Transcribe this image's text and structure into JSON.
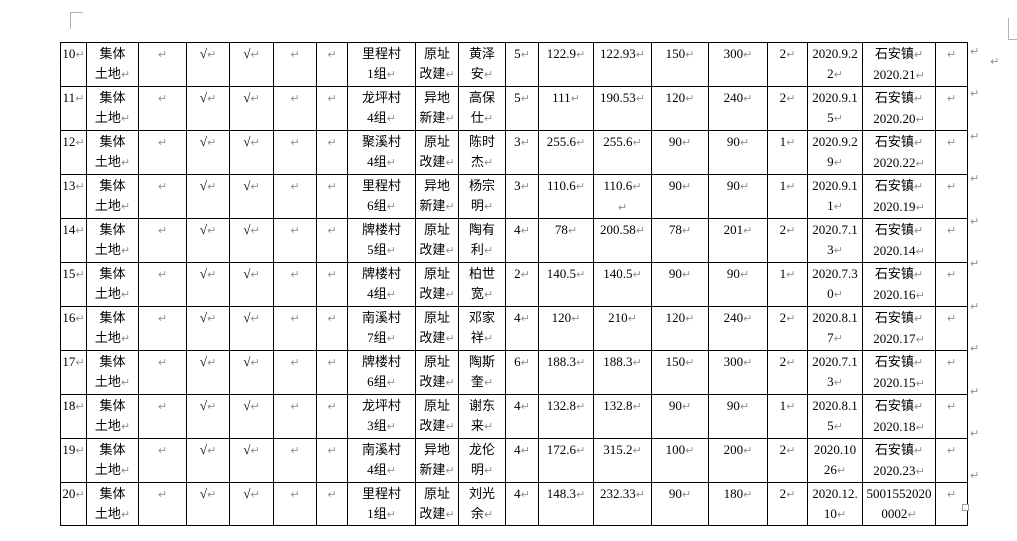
{
  "page": {
    "formatting_mark": "↵",
    "mark_color": "#8a8f9e",
    "border_color": "#000000",
    "background": "#ffffff"
  },
  "table": {
    "columns": [
      {
        "key": "no",
        "name": "row-number"
      },
      {
        "key": "land",
        "name": "land-type"
      },
      {
        "key": "b1",
        "name": "blank-1"
      },
      {
        "key": "ck1",
        "name": "check-1"
      },
      {
        "key": "ck2",
        "name": "check-2"
      },
      {
        "key": "b2",
        "name": "blank-2"
      },
      {
        "key": "b3",
        "name": "blank-3"
      },
      {
        "key": "vg",
        "name": "village-group"
      },
      {
        "key": "bm",
        "name": "build-method"
      },
      {
        "key": "nm",
        "name": "applicant-name"
      },
      {
        "key": "n1",
        "name": "num-1"
      },
      {
        "key": "a1",
        "name": "area-1"
      },
      {
        "key": "a2",
        "name": "area-2"
      },
      {
        "key": "n2",
        "name": "num-2"
      },
      {
        "key": "n3",
        "name": "num-3"
      },
      {
        "key": "n4",
        "name": "num-4"
      },
      {
        "key": "dt",
        "name": "approval-date"
      },
      {
        "key": "ap",
        "name": "approval-no"
      },
      {
        "key": "tail",
        "name": "blank-tail"
      }
    ],
    "rows": [
      {
        "no": "10↵",
        "land": "集体\n土地↵",
        "b1": "↵",
        "ck1": "√↵",
        "ck2": "√↵",
        "b2": "↵",
        "b3": "↵",
        "vg": "里程村\n1组↵",
        "bm": "原址\n改建↵",
        "nm": "黄泽\n安↵",
        "n1": "5↵",
        "a1": "122.9↵",
        "a2": "122.93↵",
        "n2": "150↵",
        "n3": "300↵",
        "n4": "2↵",
        "dt": "2020.9.2\n2↵",
        "ap": "石安镇↵\n2020.21↵",
        "tail": "↵"
      },
      {
        "no": "11↵",
        "land": "集体\n土地↵",
        "b1": "↵",
        "ck1": "√↵",
        "ck2": "√↵",
        "b2": "↵",
        "b3": "↵",
        "vg": "龙坪村\n4组↵",
        "bm": "异地\n新建↵",
        "nm": "高保\n仕↵",
        "n1": "5↵",
        "a1": "111↵",
        "a2": "190.53↵",
        "n2": "120↵",
        "n3": "240↵",
        "n4": "2↵",
        "dt": "2020.9.1\n5↵",
        "ap": "石安镇↵\n2020.20↵",
        "tail": "↵"
      },
      {
        "no": "12↵",
        "land": "集体\n土地↵",
        "b1": "↵",
        "ck1": "√↵",
        "ck2": "√↵",
        "b2": "↵",
        "b3": "↵",
        "vg": "聚溪村\n4组↵",
        "bm": "原址\n改建↵",
        "nm": "陈时\n杰↵",
        "n1": "3↵",
        "a1": "255.6↵",
        "a2": "255.6↵",
        "n2": "90↵",
        "n3": "90↵",
        "n4": "1↵",
        "dt": "2020.9.2\n9↵",
        "ap": "石安镇↵\n2020.22↵",
        "tail": "↵"
      },
      {
        "no": "13↵",
        "land": "集体\n土地↵",
        "b1": "↵",
        "ck1": "√↵",
        "ck2": "√↵",
        "b2": "↵",
        "b3": "↵",
        "vg": "里程村\n6组↵",
        "bm": "异地\n新建↵",
        "nm": "杨宗\n明↵",
        "n1": "3↵",
        "a1": "110.6↵",
        "a2": "110.6↵\n↵",
        "n2": "90↵",
        "n3": "90↵",
        "n4": "1↵",
        "dt": "2020.9.1\n1↵",
        "ap": "石安镇↵\n2020.19↵",
        "tail": "↵"
      },
      {
        "no": "14↵",
        "land": "集体\n土地↵",
        "b1": "↵",
        "ck1": "√↵",
        "ck2": "√↵",
        "b2": "↵",
        "b3": "↵",
        "vg": "牌楼村\n5组↵",
        "bm": "原址\n改建↵",
        "nm": "陶有\n利↵",
        "n1": "4↵",
        "a1": "78↵",
        "a2": "200.58↵",
        "n2": "78↵",
        "n3": "201↵",
        "n4": "2↵",
        "dt": "2020.7.1\n3↵",
        "ap": "石安镇↵\n2020.14↵",
        "tail": "↵"
      },
      {
        "no": "15↵",
        "land": "集体\n土地↵",
        "b1": "↵",
        "ck1": "√↵",
        "ck2": "√↵",
        "b2": "↵",
        "b3": "↵",
        "vg": "牌楼村\n4组↵",
        "bm": "原址\n改建↵",
        "nm": "柏世\n宽↵",
        "n1": "2↵",
        "a1": "140.5↵",
        "a2": "140.5↵",
        "n2": "90↵",
        "n3": "90↵",
        "n4": "1↵",
        "dt": "2020.7.3\n0↵",
        "ap": "石安镇↵\n2020.16↵",
        "tail": "↵"
      },
      {
        "no": "16↵",
        "land": "集体\n土地↵",
        "b1": "↵",
        "ck1": "√↵",
        "ck2": "√↵",
        "b2": "↵",
        "b3": "↵",
        "vg": "南溪村\n7组↵",
        "bm": "原址\n改建↵",
        "nm": "邓家\n祥↵",
        "n1": "4↵",
        "a1": "120↵",
        "a2": "210↵",
        "n2": "120↵",
        "n3": "240↵",
        "n4": "2↵",
        "dt": "2020.8.1\n7↵",
        "ap": "石安镇↵\n2020.17↵",
        "tail": "↵"
      },
      {
        "no": "17↵",
        "land": "集体\n土地↵",
        "b1": "↵",
        "ck1": "√↵",
        "ck2": "√↵",
        "b2": "↵",
        "b3": "↵",
        "vg": "牌楼村\n6组↵",
        "bm": "原址\n改建↵",
        "nm": "陶斯\n奎↵",
        "n1": "6↵",
        "a1": "188.3↵",
        "a2": "188.3↵",
        "n2": "150↵",
        "n3": "300↵",
        "n4": "2↵",
        "dt": "2020.7.1\n3↵",
        "ap": "石安镇↵\n2020.15↵",
        "tail": "↵"
      },
      {
        "no": "18↵",
        "land": "集体\n土地↵",
        "b1": "↵",
        "ck1": "√↵",
        "ck2": "√↵",
        "b2": "↵",
        "b3": "↵",
        "vg": "龙坪村\n3组↵",
        "bm": "原址\n改建↵",
        "nm": "谢东\n来↵",
        "n1": "4↵",
        "a1": "132.8↵",
        "a2": "132.8↵",
        "n2": "90↵",
        "n3": "90↵",
        "n4": "1↵",
        "dt": "2020.8.1\n5↵",
        "ap": "石安镇↵\n2020.18↵",
        "tail": "↵"
      },
      {
        "no": "19↵",
        "land": "集体\n土地↵",
        "b1": "↵",
        "ck1": "√↵",
        "ck2": "√↵",
        "b2": "↵",
        "b3": "↵",
        "vg": "南溪村\n4组↵",
        "bm": "异地\n新建↵",
        "nm": "龙伦\n明↵",
        "n1": "4↵",
        "a1": "172.6↵",
        "a2": "315.2↵",
        "n2": "100↵",
        "n3": "200↵",
        "n4": "2↵",
        "dt": "2020.10\n26↵",
        "ap": "石安镇↵\n2020.23↵",
        "tail": "↵"
      },
      {
        "no": "20↵",
        "land": "集体\n土地↵",
        "b1": "↵",
        "ck1": "√↵",
        "ck2": "√↵",
        "b2": "↵",
        "b3": "↵",
        "vg": "里程村\n1组↵",
        "bm": "原址\n改建↵",
        "nm": "刘光\n余↵",
        "n1": "4↵",
        "a1": "148.3↵",
        "a2": "232.33↵",
        "n2": "90↵",
        "n3": "180↵",
        "n4": "2↵",
        "dt": "2020.12.\n10↵",
        "ap": "5001552020\n0002↵",
        "tail": "↵"
      }
    ]
  }
}
